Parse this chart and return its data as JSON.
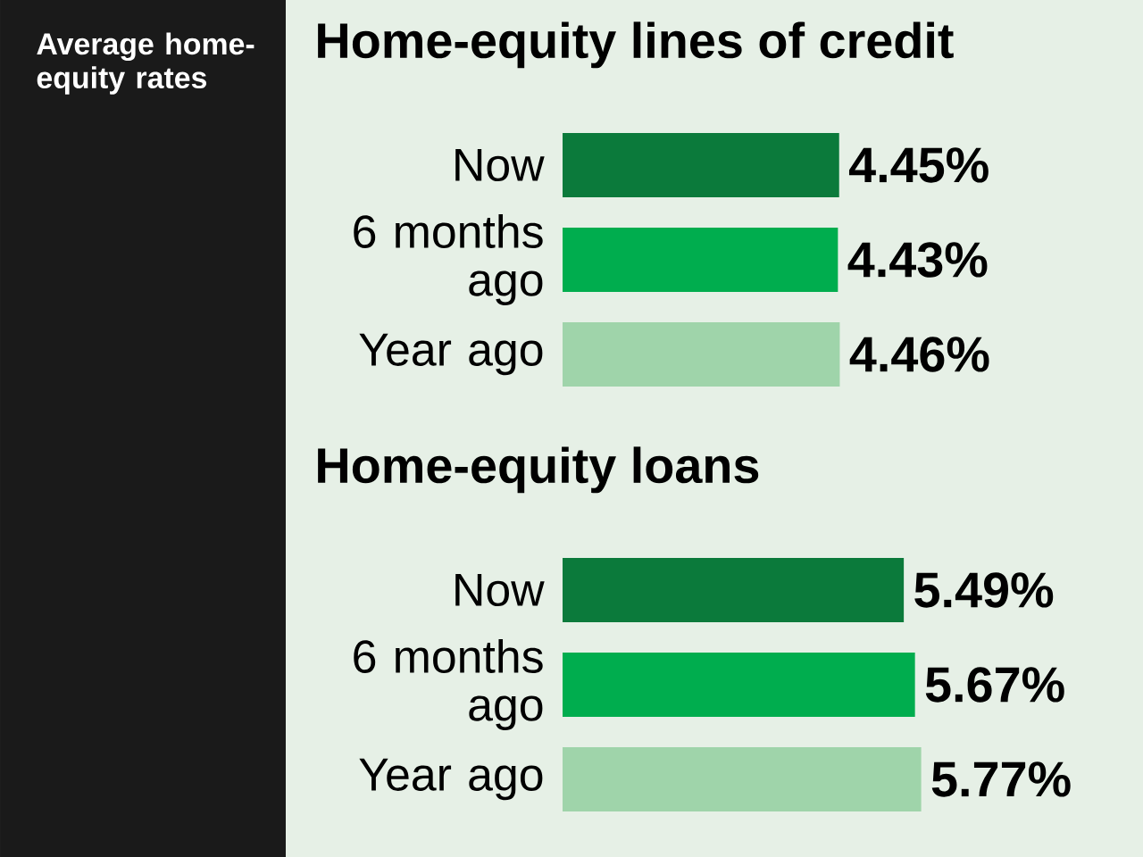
{
  "chart_data": [
    {
      "type": "bar",
      "orientation": "horizontal",
      "title": "Home-equity lines of credit",
      "annotations": [
        "Average home-equity rates"
      ],
      "categories": [
        "Now",
        "6 months ago",
        "Year ago"
      ],
      "values": [
        4.45,
        4.43,
        4.46
      ],
      "colors": [
        "#0b7a3b",
        "#00ad4e",
        "#9fd4aa"
      ],
      "value_labels": [
        "4.45%",
        "4.43%",
        "4.46%"
      ]
    },
    {
      "type": "bar",
      "orientation": "horizontal",
      "title": "Home-equity loans",
      "categories": [
        "Now",
        "6 months ago",
        "Year ago"
      ],
      "values": [
        5.49,
        5.67,
        5.77
      ],
      "colors": [
        "#0b7a3b",
        "#00ad4e",
        "#9fd4aa"
      ],
      "value_labels": [
        "5.49%",
        "5.67%",
        "5.77%"
      ]
    }
  ]
}
